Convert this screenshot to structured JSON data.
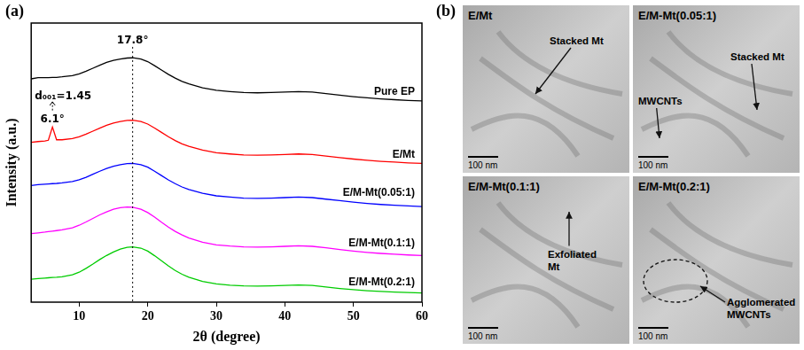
{
  "chart_data": {
    "type": "line",
    "label": "(a)",
    "x_label": "2θ (degree)",
    "y_label": "Intensity (a.u.)",
    "x": [
      3,
      4,
      5,
      5.5,
      6.1,
      6.7,
      7.5,
      9,
      10,
      11,
      12,
      13,
      14,
      15,
      16,
      17,
      17.8,
      19,
      20,
      21,
      22,
      23,
      24,
      25,
      26,
      28,
      30,
      32,
      34,
      36,
      38,
      40,
      42,
      44,
      46,
      48,
      50,
      52,
      54,
      56,
      58,
      60
    ],
    "series": [
      {
        "name": "Pure EP",
        "color": "#000000",
        "values": [
          88,
          88.5,
          88.5,
          88.5,
          88.6,
          88.6,
          88.8,
          89.3,
          90,
          91,
          92.2,
          93.4,
          94.5,
          95.3,
          95.8,
          96.2,
          96.3,
          95.8,
          94.8,
          93.2,
          91.5,
          89.8,
          88.3,
          87,
          86,
          84.5,
          83.5,
          83,
          82.6,
          82.5,
          82.6,
          82.8,
          83,
          82.8,
          82.2,
          81.6,
          81,
          80.5,
          80.1,
          79.8,
          79.5,
          79.3
        ]
      },
      {
        "name": "E/Mt",
        "color": "#ff0000",
        "values": [
          63,
          63.3,
          63.5,
          63.8,
          69,
          64,
          64,
          64.5,
          65.2,
          66.2,
          67.4,
          68.6,
          69.7,
          70.6,
          71.2,
          71.6,
          71.7,
          71.2,
          70.2,
          68.6,
          66.9,
          65.2,
          63.7,
          62.4,
          61.4,
          59.9,
          58.9,
          58.4,
          58,
          57.9,
          58,
          58.2,
          58.4,
          58.2,
          57.6,
          57,
          56.4,
          55.9,
          55.5,
          55.2,
          54.9,
          54.7
        ]
      },
      {
        "name": "E/M-Mt(0.05:1)",
        "color": "#0000ff",
        "values": [
          46,
          46.3,
          46.5,
          46.6,
          46.7,
          46.8,
          47,
          47.5,
          48.2,
          49.2,
          50.4,
          51.6,
          52.7,
          53.6,
          54.2,
          54.6,
          54.7,
          54.2,
          53.2,
          51.6,
          49.9,
          48.2,
          46.7,
          45.4,
          44.4,
          42.9,
          41.9,
          41.4,
          41,
          40.9,
          41,
          41.2,
          41.4,
          41.2,
          40.6,
          40,
          39.4,
          38.9,
          38.5,
          38.2,
          37.9,
          37.7
        ]
      },
      {
        "name": "E/M-Mt(0.1:1)",
        "color": "#ff00ff",
        "values": [
          27,
          27.3,
          27.6,
          27.8,
          28,
          28.2,
          28.5,
          29.3,
          30.3,
          31.6,
          33,
          34.4,
          35.6,
          36.6,
          37.2,
          37.5,
          37.4,
          36.6,
          35.3,
          33.5,
          31.5,
          29.6,
          27.9,
          26.5,
          25.3,
          23.6,
          22.6,
          22.1,
          21.8,
          21.7,
          21.8,
          22,
          22.2,
          22,
          21.4,
          20.7,
          20.1,
          19.6,
          19.2,
          18.9,
          18.6,
          18.4
        ]
      },
      {
        "name": "E/M-Mt(0.2:1)",
        "color": "#00cc00",
        "values": [
          9,
          9.3,
          9.5,
          9.6,
          9.7,
          9.8,
          10,
          10.8,
          11.8,
          13.3,
          15,
          16.8,
          18.4,
          19.8,
          20.9,
          21.6,
          21.8,
          21.3,
          20.1,
          18.3,
          16.3,
          14.3,
          12.5,
          11,
          9.8,
          8.2,
          7.2,
          6.7,
          6.4,
          6.3,
          6.4,
          6.6,
          6.8,
          6.6,
          6,
          5.4,
          4.9,
          4.5,
          4.2,
          4,
          3.8,
          3.6
        ]
      }
    ],
    "xlim": [
      3,
      60
    ],
    "xticks": [
      10,
      20,
      30,
      40,
      50,
      60
    ],
    "ylim": [
      0,
      110
    ],
    "grid": false,
    "tick_labels": "x",
    "annotations": [
      {
        "text": "17.8°",
        "x": 17.8,
        "y": 102,
        "line_style": "dotted"
      },
      {
        "text": "6.1°",
        "x": 6.1,
        "y": 71
      },
      {
        "text": "d₀₀₁=1.45",
        "x": 6.1,
        "y": 80
      }
    ]
  },
  "micrographs": {
    "label": "(b)",
    "images": [
      {
        "title": "E/Mt",
        "annotations": [
          "Stacked Mt"
        ],
        "scale_bar": "100 nm"
      },
      {
        "title": "E/M-Mt(0.05:1)",
        "annotations": [
          "Stacked Mt",
          "MWCNTs"
        ],
        "scale_bar": "100 nm"
      },
      {
        "title": "E/M-Mt(0.1:1)",
        "annotations": [
          "Exfoliated Mt"
        ],
        "scale_bar": "100 nm"
      },
      {
        "title": "E/M-Mt(0.2:1)",
        "annotations": [
          "Agglomerated MWCNTs"
        ],
        "scale_bar": "100 nm"
      }
    ]
  }
}
